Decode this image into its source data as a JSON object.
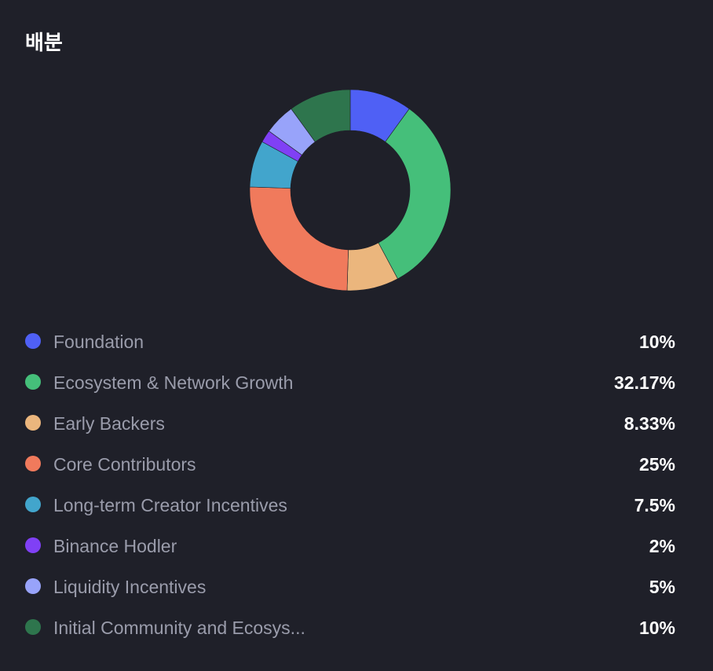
{
  "header": {
    "title": "배분"
  },
  "chart_data": {
    "type": "pie",
    "donut": true,
    "legend_position": "bottom",
    "series": [
      {
        "name": "Foundation",
        "value": 10,
        "label": "10%",
        "color": "#4f60f5"
      },
      {
        "name": "Ecosystem & Network Growth",
        "value": 32.17,
        "label": "32.17%",
        "color": "#45bf7a"
      },
      {
        "name": "Early Backers",
        "value": 8.33,
        "label": "8.33%",
        "color": "#ebb67d"
      },
      {
        "name": "Core Contributors",
        "value": 25,
        "label": "25%",
        "color": "#f07a5c"
      },
      {
        "name": "Long-term Creator Incentives",
        "value": 7.5,
        "label": "7.5%",
        "color": "#42a5cc"
      },
      {
        "name": "Binance Hodler",
        "value": 2,
        "label": "2%",
        "color": "#8040f5"
      },
      {
        "name": "Liquidity Incentives",
        "value": 5,
        "label": "5%",
        "color": "#98a3fa"
      },
      {
        "name": "Initial Community and Ecosys...",
        "value": 10,
        "label": "10%",
        "color": "#2e754d"
      }
    ]
  }
}
